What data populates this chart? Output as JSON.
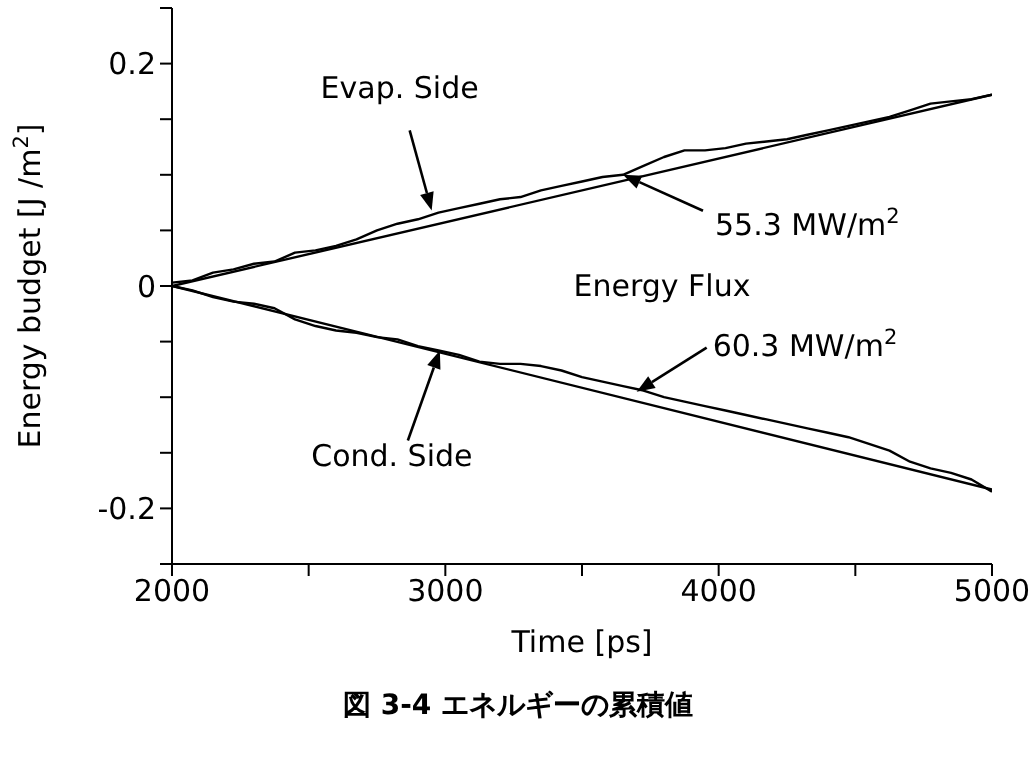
{
  "chart_data": {
    "type": "line",
    "xlabel": "Time [ps]",
    "ylabel": "Energy budget [J /m$^{2}$]",
    "xlim": [
      2000,
      5000
    ],
    "xticks": [
      2000,
      {
        "value": 2500,
        "label": null
      },
      3000,
      {
        "value": 3500,
        "label": null
      },
      4000,
      {
        "value": 4500,
        "label": null
      },
      5000
    ],
    "ylim": [
      -0.25,
      0.25
    ],
    "yticks": [
      {
        "value": -0.25,
        "label": null
      },
      -0.2,
      {
        "value": -0.15,
        "label": null
      },
      {
        "value": -0.1,
        "label": null
      },
      {
        "value": -0.05,
        "label": null
      },
      0,
      {
        "value": 0.05,
        "label": null
      },
      {
        "value": 0.1,
        "label": null
      },
      {
        "value": 0.15,
        "label": null
      },
      0.2,
      {
        "value": 0.25,
        "label": null
      }
    ],
    "marker": "none",
    "line_style": "solid",
    "series": [
      {
        "color": "#000000",
        "x": [
          2000,
          2075,
          2150,
          2225,
          2300,
          2375,
          2450,
          2525,
          2600,
          2675,
          2750,
          2825,
          2900,
          2975,
          3050,
          3125,
          3200,
          3275,
          3350,
          3425,
          3500,
          3575,
          3650,
          3725,
          3800,
          3875,
          3950,
          4025,
          4100,
          4175,
          4250,
          4325,
          4400,
          4475,
          4550,
          4625,
          4700,
          4775,
          4850,
          4925,
          5000
        ],
        "values": [
          0.003,
          0.005,
          0.012,
          0.015,
          0.02,
          0.022,
          0.03,
          0.032,
          0.036,
          0.042,
          0.05,
          0.056,
          0.06,
          0.066,
          0.07,
          0.074,
          0.078,
          0.08,
          0.086,
          0.09,
          0.094,
          0.098,
          0.1,
          0.108,
          0.116,
          0.122,
          0.122,
          0.124,
          0.128,
          0.13,
          0.132,
          0.136,
          0.14,
          0.144,
          0.148,
          0.152,
          0.158,
          0.164,
          0.166,
          0.168,
          0.172
        ]
      },
      {
        "color": "#000000",
        "x": [
          2000,
          2075,
          2150,
          2225,
          2300,
          2375,
          2450,
          2525,
          2600,
          2675,
          2750,
          2825,
          2900,
          2975,
          3050,
          3125,
          3200,
          3275,
          3350,
          3425,
          3500,
          3575,
          3650,
          3725,
          3800,
          3875,
          3950,
          4025,
          4100,
          4175,
          4250,
          4325,
          4400,
          4475,
          4550,
          4625,
          4700,
          4775,
          4850,
          4925,
          5000
        ],
        "values": [
          0,
          -0.004,
          -0.01,
          -0.014,
          -0.016,
          -0.02,
          -0.03,
          -0.036,
          -0.04,
          -0.042,
          -0.046,
          -0.048,
          -0.054,
          -0.058,
          -0.062,
          -0.068,
          -0.07,
          -0.07,
          -0.072,
          -0.076,
          -0.082,
          -0.086,
          -0.09,
          -0.094,
          -0.1,
          -0.104,
          -0.108,
          -0.112,
          -0.116,
          -0.12,
          -0.124,
          -0.128,
          -0.132,
          -0.136,
          -0.142,
          -0.148,
          -0.158,
          -0.164,
          -0.168,
          -0.174,
          -0.185
        ]
      },
      {
        "color": "#000000",
        "x": [
          2000,
          5000
        ],
        "values": [
          0,
          0.172
        ]
      },
      {
        "color": "#000000",
        "x": [
          2000,
          5000
        ],
        "values": [
          0,
          -0.183
        ]
      }
    ],
    "annotations": [
      {
        "text": "Evap. Side",
        "x": 2950,
        "y": 0.068
      },
      {
        "text": "Cond. Side",
        "x": 2980,
        "y": -0.058
      },
      {
        "text": "55.3 MW/m$^{2}$",
        "x": 3650,
        "y": 0.1
      },
      {
        "text": "60.3 MW/m$^{2}$",
        "x": 3700,
        "y": -0.095
      },
      "Energy Flux",
      "図 3-4 エネルギーの累積値"
    ]
  }
}
